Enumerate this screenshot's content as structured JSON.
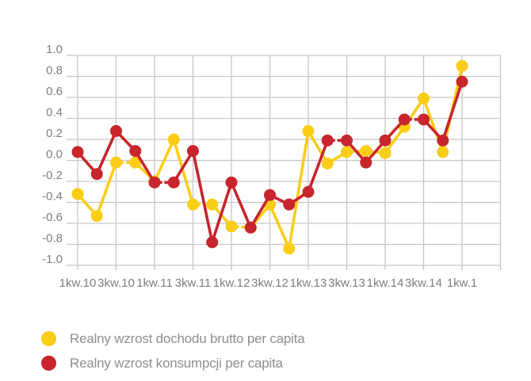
{
  "chart_data": {
    "type": "line",
    "title": "",
    "xlabel": "",
    "ylabel": "",
    "ylim": [
      -1.0,
      1.0
    ],
    "y_tick_step": 0.2,
    "y_tick_labels": [
      "1.0",
      "0.8",
      "0.6",
      "0.4",
      "0.2",
      "0.0",
      "-0.2",
      "-0.4",
      "-0.6",
      "-0.8",
      "-1.0"
    ],
    "x_tick_labels": [
      "1kw.10",
      "3kw.10",
      "1kw.11",
      "3kw.11",
      "1kw.12",
      "3kw.12",
      "1kw.13",
      "3kw.13",
      "1kw.14",
      "3kw.14",
      "1kw.1"
    ],
    "x_tick_point_indices": [
      0,
      2,
      4,
      6,
      8,
      10,
      12,
      14,
      16,
      18,
      20
    ],
    "n_points": 21,
    "grid": true,
    "legend_position": "bottom-left",
    "colors": {
      "grid": "#c6c6c6",
      "axis_text": "#7e7e7e",
      "background": "#ffffff"
    },
    "series": [
      {
        "name": "Realny wzrost dochodu brutto per capita",
        "color": "#fccd17",
        "values": [
          -0.32,
          -0.53,
          -0.02,
          -0.02,
          -0.2,
          0.2,
          -0.42,
          -0.42,
          -0.63,
          -0.64,
          -0.42,
          -0.84,
          0.28,
          -0.03,
          0.08,
          0.09,
          0.07,
          0.32,
          0.59,
          0.08,
          0.9
        ]
      },
      {
        "name": "Realny wzrost konsumpcji per capita",
        "color": "#c8252d",
        "values": [
          0.08,
          -0.13,
          0.28,
          0.09,
          -0.21,
          -0.21,
          0.09,
          -0.78,
          -0.21,
          -0.64,
          -0.33,
          -0.42,
          -0.3,
          0.19,
          0.19,
          -0.02,
          0.19,
          0.39,
          0.39,
          0.19,
          0.75
        ]
      }
    ]
  },
  "legend": {
    "items": [
      {
        "label": "Realny wzrost dochodu brutto per capita",
        "color": "#fccd17"
      },
      {
        "label": "Realny wzrost konsumpcji per capita",
        "color": "#c8252d"
      }
    ]
  }
}
